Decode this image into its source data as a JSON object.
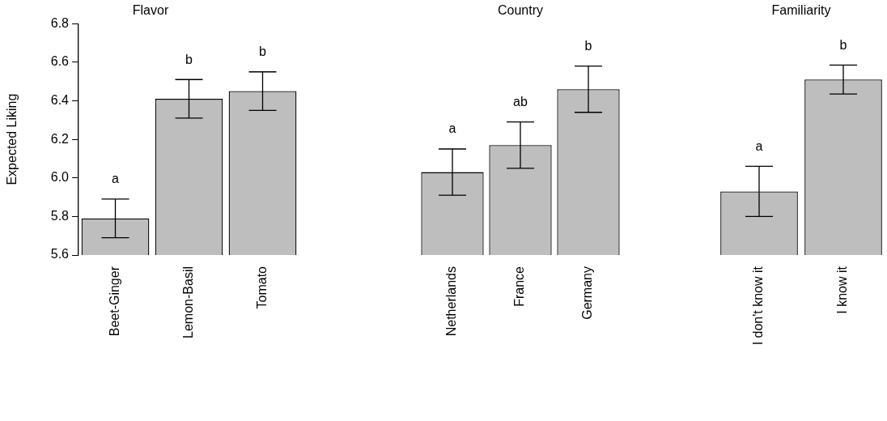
{
  "chart_data": [
    {
      "type": "bar",
      "title": "Flavor",
      "ylabel": "Expected Liking",
      "categories": [
        "Beet-Ginger",
        "Lemon-Basil",
        "Tomato"
      ],
      "values": [
        5.79,
        6.41,
        6.45
      ],
      "errors": [
        0.1,
        0.1,
        0.1
      ],
      "color": "#bebebe",
      "ylim": [
        5.6,
        6.8
      ],
      "yticks": [
        5.6,
        5.8,
        {
          "value": 6,
          "label": "6.0"
        },
        6.2,
        6.4,
        6.6,
        6.8
      ],
      "annotations": [
        "a",
        "b",
        "b"
      ]
    },
    {
      "type": "bar",
      "title": "Country",
      "categories": [
        "Netherlands",
        "France",
        "Germany"
      ],
      "values": [
        6.03,
        6.17,
        6.46
      ],
      "errors": [
        0.12,
        0.12,
        0.12
      ],
      "color": "#bebebe",
      "ylim": [
        5.6,
        6.8
      ],
      "tick_labels": "x",
      "annotations": [
        "a",
        "ab",
        "b"
      ]
    },
    {
      "type": "bar",
      "title": "Familiarity",
      "categories": [
        "I don't know it",
        "I know it"
      ],
      "values": [
        5.93,
        6.51
      ],
      "errors": [
        0.13,
        0.075
      ],
      "color": "#bebebe",
      "ylim": [
        5.6,
        6.8
      ],
      "tick_labels": "x",
      "annotations": [
        "a",
        "b"
      ]
    }
  ]
}
